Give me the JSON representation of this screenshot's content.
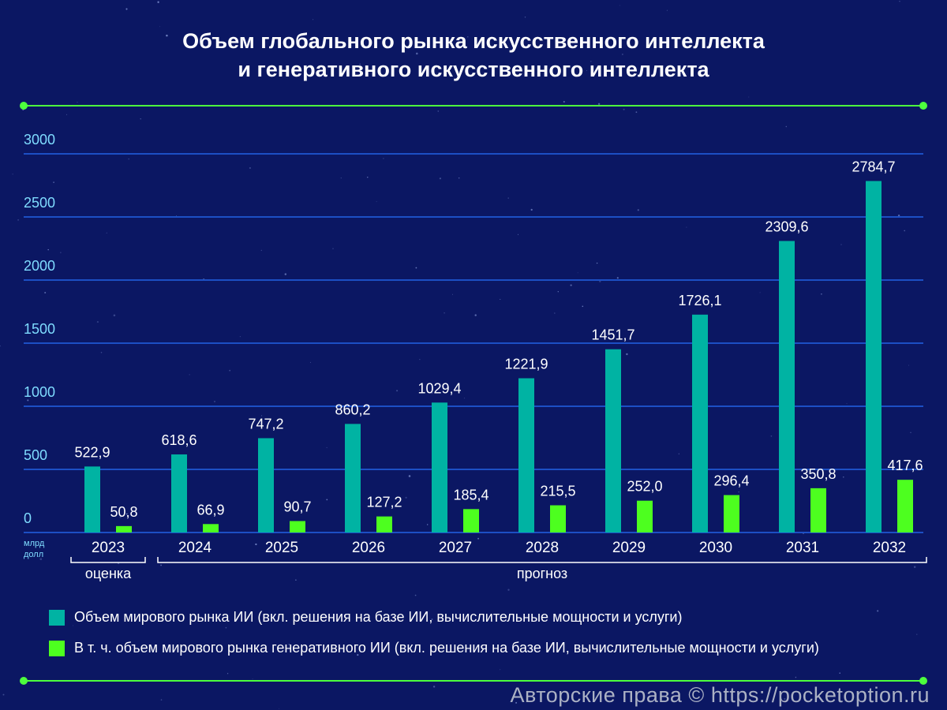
{
  "title_line1": "Объем глобального рынка искусственного интеллекта",
  "title_line2": "и генеративного искусственного интеллекта",
  "colors": {
    "background": "#0b1763",
    "ai_market": "#00b3a3",
    "genai_market": "#4dff1f",
    "accent_line": "#4dff3d",
    "grid": "#1c4fc4"
  },
  "chart_data": {
    "type": "bar",
    "categories": [
      "2023",
      "2024",
      "2025",
      "2026",
      "2027",
      "2028",
      "2029",
      "2030",
      "2031",
      "2032"
    ],
    "series": [
      {
        "name": "Объем мирового рынка ИИ (вкл. решения на базе ИИ, вычислительные мощности и услуги)",
        "values": [
          522.9,
          618.6,
          747.2,
          860.2,
          1029.4,
          1221.9,
          1451.7,
          1726.1,
          2309.6,
          2784.7
        ],
        "labels": [
          "522,9",
          "618,6",
          "747,2",
          "860,2",
          "1029,4",
          "1221,9",
          "1451,7",
          "1726,1",
          "2309,6",
          "2784,7"
        ]
      },
      {
        "name": "В т. ч. объем мирового рынка генеративного ИИ (вкл. решения на базе ИИ, вычислительные мощности и услуги)",
        "values": [
          50.8,
          66.9,
          90.7,
          127.2,
          185.4,
          215.5,
          252.0,
          296.4,
          350.8,
          417.6
        ],
        "labels": [
          "50,8",
          "66,9",
          "90,7",
          "127,2",
          "185,4",
          "215,5",
          "252,0",
          "296,4",
          "350,8",
          "417,6"
        ]
      }
    ],
    "ylim": [
      0,
      3000
    ],
    "yticks": [
      0,
      500,
      1000,
      1500,
      2000,
      2500,
      3000
    ],
    "ylabel": "млрд долл",
    "unit_line1": "млрд",
    "unit_line2": "долл",
    "periods": [
      {
        "label": "оценка",
        "from": "2023",
        "to": "2023"
      },
      {
        "label": "прогноз",
        "from": "2024",
        "to": "2032"
      }
    ],
    "grid": true,
    "legend_position": "bottom-left"
  },
  "legend": {
    "item1": "Объем мирового рынка ИИ (вкл. решения на базе ИИ, вычислительные мощности и услуги)",
    "item2": "В т. ч. объем мирового рынка генеративного ИИ (вкл. решения на базе ИИ, вычислительные мощности и услуги)"
  },
  "watermark": "Авторские права © https://pocketoption.ru"
}
